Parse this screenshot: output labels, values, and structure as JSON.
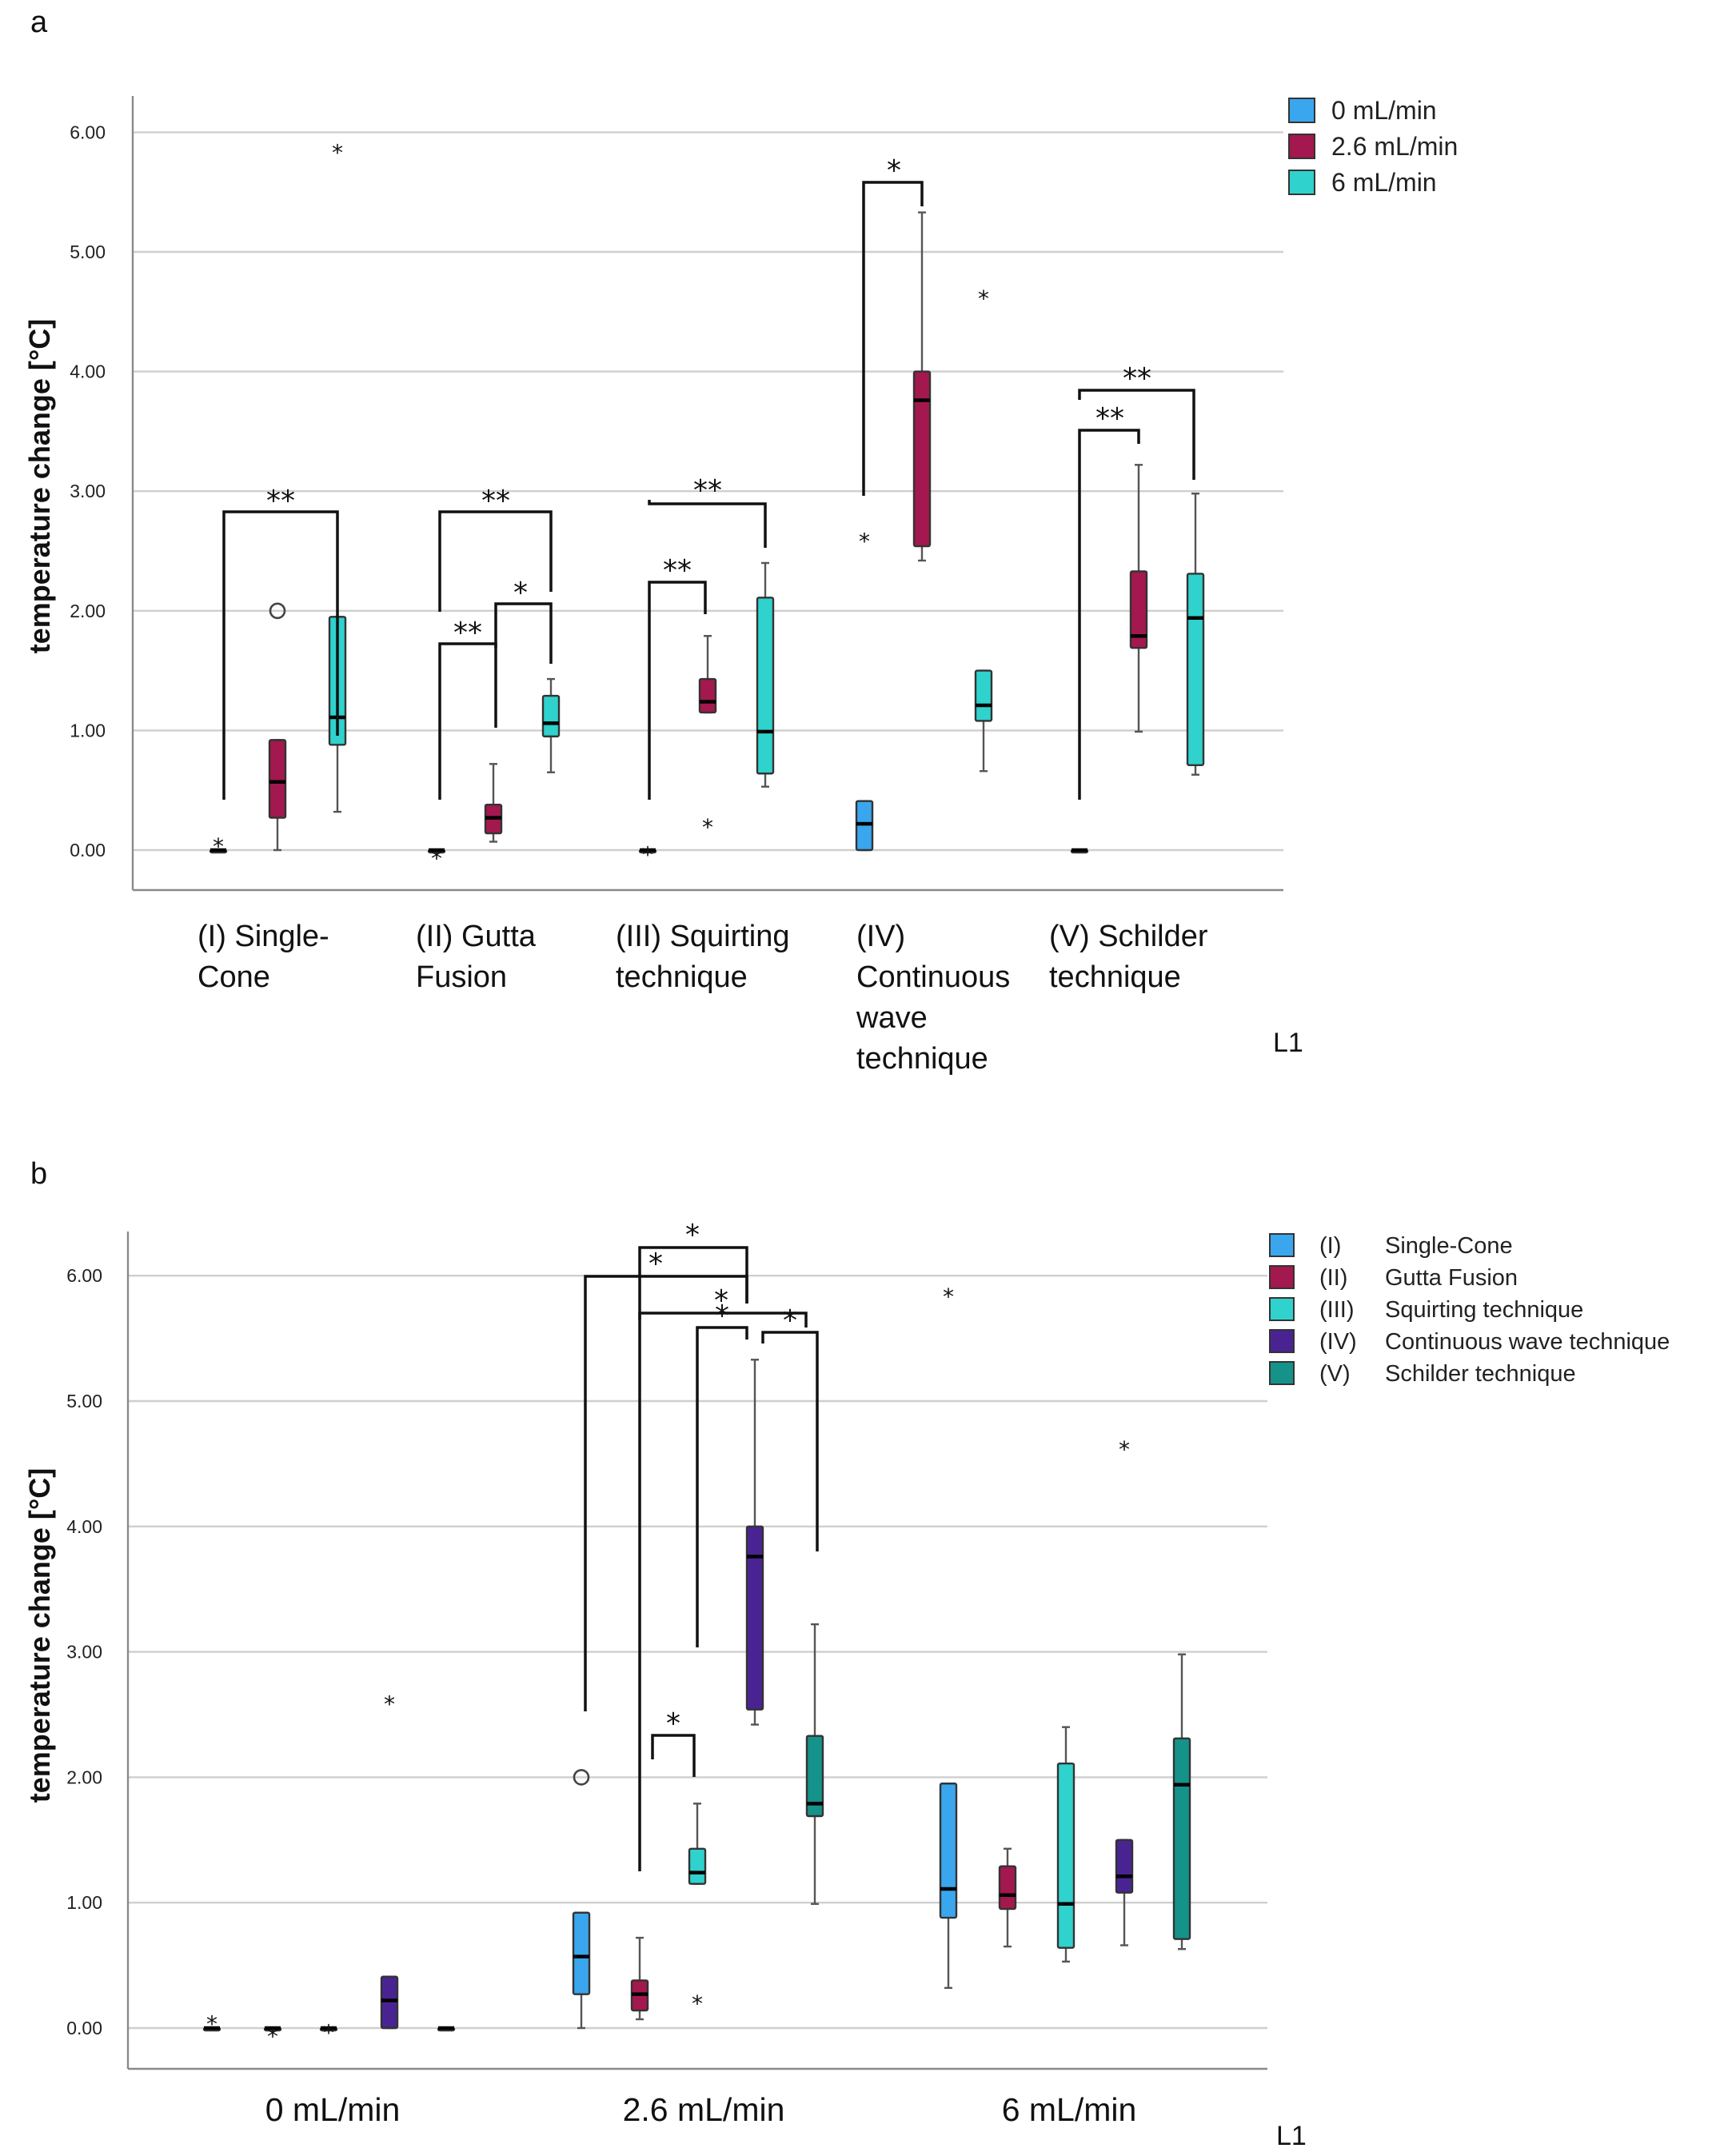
{
  "chart_data": [
    {
      "panel": "a",
      "type": "box",
      "ylabel": "temperature change [°C]",
      "ytick_labels": [
        "0.00",
        "1.00",
        "2.00",
        "3.00",
        "4.00",
        "5.00",
        "6.00"
      ],
      "ylim": [
        -0.35,
        6.3
      ],
      "grid": true,
      "corner_label": "L1",
      "legend_position": "top-right",
      "legend": [
        {
          "label": "0 mL/min",
          "color": "#3aa6ee"
        },
        {
          "label": "2.6 mL/min",
          "color": "#a3184e"
        },
        {
          "label": "6 mL/min",
          "color": "#2fd2cc"
        }
      ],
      "categories": [
        {
          "lines": [
            "(I) Single-",
            "Cone"
          ]
        },
        {
          "lines": [
            "(II) Gutta",
            "Fusion"
          ]
        },
        {
          "lines": [
            "(III) Squirting",
            "technique"
          ]
        },
        {
          "lines": [
            "(IV)",
            "Continuous",
            "wave",
            "technique"
          ]
        },
        {
          "lines": [
            "(V) Schilder",
            "technique"
          ]
        }
      ],
      "boxes": [
        {
          "group": 0,
          "series": 0,
          "min": 0,
          "q1": 0,
          "median": 0,
          "q3": 0,
          "max": 0,
          "outliers": [
            {
              "v": 0.1,
              "s": "star"
            }
          ]
        },
        {
          "group": 0,
          "series": 1,
          "min": 0,
          "q1": 0.27,
          "median": 0.57,
          "q3": 0.92,
          "max": 0.92,
          "outliers": [
            {
              "v": 2.0,
              "s": "circle"
            }
          ]
        },
        {
          "group": 0,
          "series": 2,
          "min": 0.32,
          "q1": 0.88,
          "median": 1.11,
          "q3": 1.95,
          "max": 1.95,
          "outliers": [
            {
              "v": 5.9,
              "s": "star"
            }
          ]
        },
        {
          "group": 1,
          "series": 0,
          "min": 0,
          "q1": 0,
          "median": 0,
          "q3": 0,
          "max": 0,
          "outliers": [
            {
              "v": 0,
              "s": "star"
            }
          ]
        },
        {
          "group": 1,
          "series": 1,
          "min": 0.07,
          "q1": 0.14,
          "median": 0.27,
          "q3": 0.38,
          "max": 0.72,
          "outliers": []
        },
        {
          "group": 1,
          "series": 2,
          "min": 0.65,
          "q1": 0.95,
          "median": 1.06,
          "q3": 1.29,
          "max": 1.43,
          "outliers": []
        },
        {
          "group": 2,
          "series": 0,
          "min": 0,
          "q1": 0,
          "median": 0,
          "q3": 0,
          "max": 0,
          "outliers": [
            {
              "v": 0.03,
              "s": "star"
            }
          ]
        },
        {
          "group": 2,
          "series": 1,
          "min": 1.15,
          "q1": 1.15,
          "median": 1.24,
          "q3": 1.43,
          "max": 1.79,
          "outliers": [
            {
              "v": 0.26,
              "s": "star"
            }
          ]
        },
        {
          "group": 2,
          "series": 2,
          "min": 0.53,
          "q1": 0.64,
          "median": 0.99,
          "q3": 2.11,
          "max": 2.4,
          "outliers": []
        },
        {
          "group": 3,
          "series": 0,
          "min": 0,
          "q1": 0,
          "median": 0.22,
          "q3": 0.41,
          "max": 0.41,
          "outliers": [
            {
              "v": 2.65,
              "s": "star"
            }
          ]
        },
        {
          "group": 3,
          "series": 1,
          "min": 2.42,
          "q1": 2.54,
          "median": 3.76,
          "q3": 4.0,
          "max": 5.33,
          "outliers": []
        },
        {
          "group": 3,
          "series": 2,
          "min": 0.66,
          "q1": 1.08,
          "median": 1.21,
          "q3": 1.5,
          "max": 1.5,
          "outliers": [
            {
              "v": 4.68,
              "s": "star"
            }
          ]
        },
        {
          "group": 4,
          "series": 0,
          "min": 0,
          "q1": 0,
          "median": 0,
          "q3": 0,
          "max": 0,
          "outliers": []
        },
        {
          "group": 4,
          "series": 1,
          "min": 0.99,
          "q1": 1.69,
          "median": 1.79,
          "q3": 2.33,
          "max": 3.22,
          "outliers": []
        },
        {
          "group": 4,
          "series": 2,
          "min": 0.63,
          "q1": 0.71,
          "median": 1.94,
          "q3": 2.31,
          "max": 2.98,
          "outliers": []
        }
      ],
      "significance": [
        {
          "from": [
            0,
            0
          ],
          "to": [
            0,
            2
          ],
          "label": "**"
        },
        {
          "from": [
            1,
            0
          ],
          "to": [
            1,
            2
          ],
          "label": "**"
        },
        {
          "from": [
            1,
            1
          ],
          "to": [
            1,
            2
          ],
          "label": "*"
        },
        {
          "from": [
            1,
            0
          ],
          "to": [
            1,
            1
          ],
          "label": "**"
        },
        {
          "from": [
            2,
            0
          ],
          "to": [
            2,
            2
          ],
          "label": "**"
        },
        {
          "from": [
            2,
            0
          ],
          "to": [
            2,
            1
          ],
          "label": "**"
        },
        {
          "from": [
            3,
            0
          ],
          "to": [
            3,
            1
          ],
          "label": "*"
        },
        {
          "from": [
            4,
            0
          ],
          "to": [
            4,
            2
          ],
          "label": "**"
        },
        {
          "from": [
            4,
            0
          ],
          "to": [
            4,
            1
          ],
          "label": "**"
        }
      ]
    },
    {
      "panel": "b",
      "type": "box",
      "ylabel": "temperature change [°C]",
      "ytick_labels": [
        "0.00",
        "1.00",
        "2.00",
        "3.00",
        "4.00",
        "5.00",
        "6.00"
      ],
      "ylim": [
        -0.33,
        6.45
      ],
      "grid": true,
      "corner_label": "L1",
      "legend_position": "top-right",
      "legend": [
        {
          "code": "(I)",
          "label": "Single-Cone",
          "color": "#3aa6ee"
        },
        {
          "code": "(II)",
          "label": "Gutta Fusion",
          "color": "#a3184e"
        },
        {
          "code": "(III)",
          "label": "Squirting technique",
          "color": "#2fd2cc"
        },
        {
          "code": "(IV)",
          "label": "Continuous wave technique",
          "color": "#4a2393"
        },
        {
          "code": "(V)",
          "label": "Schilder technique",
          "color": "#15928a"
        }
      ],
      "categories": [
        {
          "lines": [
            "0 mL/min"
          ]
        },
        {
          "lines": [
            "2.6 mL/min"
          ]
        },
        {
          "lines": [
            "6 mL/min"
          ]
        }
      ],
      "boxes": [
        {
          "group": 0,
          "series": 0,
          "min": 0,
          "q1": 0,
          "median": 0,
          "q3": 0,
          "max": 0,
          "outliers": [
            {
              "v": 0.1,
              "s": "star"
            }
          ]
        },
        {
          "group": 0,
          "series": 1,
          "min": 0,
          "q1": 0,
          "median": 0,
          "q3": 0,
          "max": 0,
          "outliers": [
            {
              "v": 0,
              "s": "star"
            }
          ]
        },
        {
          "group": 0,
          "series": 2,
          "min": 0,
          "q1": 0,
          "median": 0,
          "q3": 0,
          "max": 0,
          "outliers": [
            {
              "v": 0.03,
              "s": "star"
            }
          ]
        },
        {
          "group": 0,
          "series": 3,
          "min": 0,
          "q1": 0,
          "median": 0.22,
          "q3": 0.41,
          "max": 0.41,
          "outliers": [
            {
              "v": 2.65,
              "s": "star"
            }
          ]
        },
        {
          "group": 0,
          "series": 4,
          "min": 0,
          "q1": 0,
          "median": 0,
          "q3": 0,
          "max": 0,
          "outliers": []
        },
        {
          "group": 1,
          "series": 0,
          "min": 0,
          "q1": 0.27,
          "median": 0.57,
          "q3": 0.92,
          "max": 0.92,
          "outliers": [
            {
              "v": 2.0,
              "s": "circle"
            }
          ]
        },
        {
          "group": 1,
          "series": 1,
          "min": 0.07,
          "q1": 0.14,
          "median": 0.27,
          "q3": 0.38,
          "max": 0.72,
          "outliers": []
        },
        {
          "group": 1,
          "series": 2,
          "min": 1.15,
          "q1": 1.15,
          "median": 1.24,
          "q3": 1.43,
          "max": 1.79,
          "outliers": [
            {
              "v": 0.26,
              "s": "star"
            }
          ]
        },
        {
          "group": 1,
          "series": 3,
          "min": 2.42,
          "q1": 2.54,
          "median": 3.76,
          "q3": 4.0,
          "max": 5.33,
          "outliers": []
        },
        {
          "group": 1,
          "series": 4,
          "min": 0.99,
          "q1": 1.69,
          "median": 1.79,
          "q3": 2.33,
          "max": 3.22,
          "outliers": []
        },
        {
          "group": 2,
          "series": 0,
          "min": 0.32,
          "q1": 0.88,
          "median": 1.11,
          "q3": 1.95,
          "max": 1.95,
          "outliers": [
            {
              "v": 5.9,
              "s": "star"
            }
          ]
        },
        {
          "group": 2,
          "series": 1,
          "min": 0.65,
          "q1": 0.95,
          "median": 1.06,
          "q3": 1.29,
          "max": 1.43,
          "outliers": []
        },
        {
          "group": 2,
          "series": 2,
          "min": 0.53,
          "q1": 0.64,
          "median": 0.99,
          "q3": 2.11,
          "max": 2.4,
          "outliers": []
        },
        {
          "group": 2,
          "series": 3,
          "min": 0.66,
          "q1": 1.08,
          "median": 1.21,
          "q3": 1.5,
          "max": 1.5,
          "outliers": [
            {
              "v": 4.68,
              "s": "star"
            }
          ]
        },
        {
          "group": 2,
          "series": 4,
          "min": 0.63,
          "q1": 0.71,
          "median": 1.94,
          "q3": 2.31,
          "max": 2.98,
          "outliers": []
        }
      ],
      "significance": [
        {
          "from": [
            1,
            0
          ],
          "to": [
            1,
            3
          ],
          "label": "*"
        },
        {
          "from": [
            1,
            1
          ],
          "to": [
            1,
            3
          ],
          "label": "*"
        },
        {
          "from": [
            1,
            1
          ],
          "to": [
            1,
            4
          ],
          "label": "*"
        },
        {
          "from": [
            1,
            2
          ],
          "to": [
            1,
            3
          ],
          "label": "*"
        },
        {
          "from": [
            1,
            3
          ],
          "to": [
            1,
            4
          ],
          "label": "*"
        },
        {
          "from": [
            1,
            1
          ],
          "to": [
            1,
            2
          ],
          "label": "*"
        }
      ]
    }
  ]
}
